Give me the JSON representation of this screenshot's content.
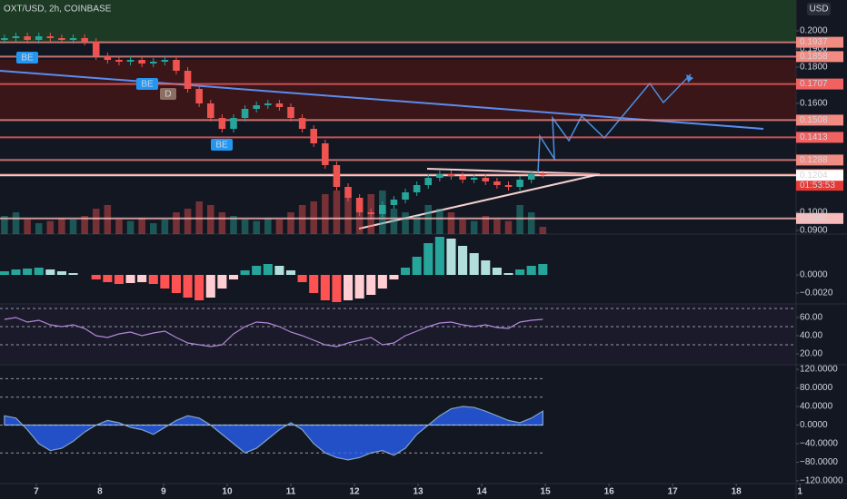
{
  "chart_data": [
    {
      "type": "candlestick",
      "title": "OXT/USD, 2h, COINBASE",
      "currency": "USD",
      "countdown": "01:53:53",
      "annotations": [
        "BE",
        "BE",
        "D",
        "BE"
      ],
      "xlim": [
        6.43,
        18.94
      ],
      "xticks": [
        7,
        8,
        9,
        10,
        11,
        12,
        13,
        14,
        15,
        16,
        17,
        18,
        {
          "value": 19,
          "label": "1"
        }
      ],
      "ylim": [
        0.088,
        0.217
      ],
      "yticks": [
        {
          "value": 0.2,
          "label": "0.2000"
        },
        {
          "value": 0.19,
          "label": "0.1900"
        },
        {
          "value": 0.18,
          "label": "0.1800"
        },
        {
          "value": 0.16,
          "label": "0.1600"
        },
        {
          "value": 0.1,
          "label": "0.1000"
        },
        {
          "value": 0.09,
          "label": "0.0900"
        }
      ],
      "levels": [
        {
          "value": 0.1937,
          "color": "#f28b82"
        },
        {
          "value": 0.1858,
          "color": "#f28b82"
        },
        {
          "value": 0.1707,
          "color": "#f06262"
        },
        {
          "value": 0.1508,
          "color": "#f28b82"
        },
        {
          "value": 0.1413,
          "color": "#f06262"
        },
        {
          "value": 0.1288,
          "color": "#f28b82"
        },
        {
          "value": 0.1209,
          "color": "#e53935"
        },
        {
          "value": 0.1204,
          "color": "#ffffff"
        },
        {
          "value": 0.0966,
          "color": "#f8bbbb"
        }
      ],
      "up_color": "#26a69a",
      "down_color": "#ef5350",
      "x": [
        6.5,
        6.68,
        6.86,
        7.04,
        7.22,
        7.4,
        7.58,
        7.76,
        7.94,
        8.12,
        8.3,
        8.48,
        8.66,
        8.84,
        9.02,
        9.2,
        9.38,
        9.56,
        9.74,
        9.92,
        10.1,
        10.28,
        10.46,
        10.64,
        10.82,
        11.0,
        11.18,
        11.36,
        11.54,
        11.72,
        11.9,
        12.08,
        12.26,
        12.44,
        12.62,
        12.8,
        12.98,
        13.16,
        13.34,
        13.52,
        13.7,
        13.88,
        14.06,
        14.24,
        14.42,
        14.6,
        14.78,
        14.96
      ],
      "open": [
        0.195,
        0.196,
        0.197,
        0.195,
        0.197,
        0.196,
        0.195,
        0.196,
        0.194,
        0.186,
        0.184,
        0.183,
        0.184,
        0.182,
        0.183,
        0.184,
        0.178,
        0.168,
        0.16,
        0.152,
        0.146,
        0.152,
        0.157,
        0.159,
        0.16,
        0.158,
        0.152,
        0.146,
        0.138,
        0.126,
        0.114,
        0.108,
        0.1,
        0.099,
        0.104,
        0.107,
        0.111,
        0.115,
        0.119,
        0.121,
        0.12,
        0.118,
        0.119,
        0.117,
        0.115,
        0.114,
        0.118,
        0.121
      ],
      "high": [
        0.198,
        0.199,
        0.199,
        0.199,
        0.199,
        0.198,
        0.198,
        0.198,
        0.196,
        0.188,
        0.186,
        0.186,
        0.186,
        0.185,
        0.186,
        0.186,
        0.18,
        0.17,
        0.162,
        0.154,
        0.154,
        0.159,
        0.161,
        0.162,
        0.162,
        0.16,
        0.154,
        0.148,
        0.14,
        0.128,
        0.116,
        0.11,
        0.102,
        0.106,
        0.109,
        0.113,
        0.117,
        0.121,
        0.123,
        0.123,
        0.122,
        0.121,
        0.121,
        0.119,
        0.117,
        0.12,
        0.123,
        0.123
      ],
      "low": [
        0.193,
        0.194,
        0.193,
        0.193,
        0.194,
        0.193,
        0.193,
        0.192,
        0.184,
        0.182,
        0.181,
        0.181,
        0.18,
        0.18,
        0.181,
        0.176,
        0.166,
        0.158,
        0.15,
        0.144,
        0.144,
        0.15,
        0.155,
        0.157,
        0.156,
        0.15,
        0.144,
        0.136,
        0.124,
        0.112,
        0.106,
        0.098,
        0.097,
        0.097,
        0.102,
        0.105,
        0.109,
        0.113,
        0.117,
        0.118,
        0.116,
        0.116,
        0.115,
        0.113,
        0.112,
        0.112,
        0.116,
        0.1189
      ],
      "close": [
        0.196,
        0.197,
        0.195,
        0.197,
        0.196,
        0.195,
        0.196,
        0.194,
        0.186,
        0.184,
        0.183,
        0.184,
        0.182,
        0.183,
        0.184,
        0.178,
        0.168,
        0.16,
        0.152,
        0.146,
        0.152,
        0.157,
        0.159,
        0.16,
        0.158,
        0.152,
        0.146,
        0.138,
        0.126,
        0.114,
        0.108,
        0.1,
        0.099,
        0.104,
        0.107,
        0.111,
        0.115,
        0.119,
        0.121,
        0.12,
        0.118,
        0.119,
        0.117,
        0.115,
        0.114,
        0.118,
        0.121,
        0.1209
      ],
      "volume_ylim": [
        0,
        100
      ],
      "volume": [
        25,
        30,
        20,
        15,
        18,
        22,
        20,
        25,
        35,
        40,
        20,
        18,
        22,
        15,
        20,
        30,
        35,
        45,
        40,
        30,
        25,
        20,
        18,
        22,
        20,
        30,
        40,
        45,
        55,
        60,
        50,
        45,
        55,
        60,
        35,
        30,
        25,
        40,
        35,
        30,
        20,
        18,
        25,
        20,
        18,
        40,
        30,
        10
      ]
    },
    {
      "type": "bar",
      "ylim": [
        -0.0032,
        0.0045
      ],
      "yticks": [
        {
          "value": 0,
          "label": "0.0000"
        },
        {
          "value": -0.002,
          "label": "−0.0020"
        }
      ],
      "values": [
        0.0004,
        0.0006,
        0.0007,
        0.0008,
        0.0006,
        0.0004,
        0.0002,
        0,
        -0.0005,
        -0.0008,
        -0.001,
        -0.0009,
        -0.0008,
        -0.001,
        -0.0015,
        -0.002,
        -0.0025,
        -0.0028,
        -0.0025,
        -0.0015,
        -0.0005,
        0.0005,
        0.001,
        0.0012,
        0.001,
        0.0005,
        -0.0008,
        -0.002,
        -0.0028,
        -0.003,
        -0.0028,
        -0.0026,
        -0.0022,
        -0.0015,
        -0.0005,
        0.0008,
        0.002,
        0.0035,
        0.0042,
        0.004,
        0.0032,
        0.0024,
        0.0016,
        0.0008,
        0.0002,
        0.0006,
        0.001,
        0.0012
      ]
    },
    {
      "type": "line",
      "ylim": [
        8,
        75
      ],
      "color": "#b388d8",
      "yticks": [
        {
          "value": 60,
          "label": "60.00"
        },
        {
          "value": 40,
          "label": "40.00"
        },
        {
          "value": 20,
          "label": "20.00"
        }
      ],
      "hlines": [
        70,
        50,
        30
      ],
      "values": [
        58,
        60,
        55,
        57,
        52,
        50,
        52,
        48,
        40,
        38,
        42,
        44,
        40,
        43,
        45,
        38,
        32,
        30,
        28,
        30,
        42,
        50,
        55,
        54,
        50,
        44,
        40,
        35,
        30,
        28,
        32,
        35,
        38,
        30,
        32,
        40,
        45,
        50,
        54,
        55,
        52,
        50,
        52,
        49,
        48,
        55,
        57,
        58
      ]
    },
    {
      "type": "area",
      "ylim": [
        -126,
        128
      ],
      "color": "#2962ff",
      "yticks": [
        {
          "value": 120,
          "label": "120.0000"
        },
        {
          "value": 80,
          "label": "80.0000"
        },
        {
          "value": 40,
          "label": "40.0000"
        },
        {
          "value": 0,
          "label": "0.0000"
        },
        {
          "value": -40,
          "label": "−40.0000"
        },
        {
          "value": -80,
          "label": "−80.0000"
        },
        {
          "value": -120,
          "label": "−120.0000"
        }
      ],
      "hlines": [
        100,
        60,
        0,
        -60
      ],
      "values": [
        20,
        15,
        -10,
        -40,
        -55,
        -50,
        -35,
        -15,
        0,
        10,
        5,
        -5,
        -10,
        -20,
        -5,
        10,
        20,
        15,
        0,
        -20,
        -40,
        -60,
        -50,
        -30,
        -10,
        5,
        -10,
        -40,
        -60,
        -70,
        -75,
        -70,
        -60,
        -55,
        -65,
        -50,
        -20,
        0,
        20,
        35,
        40,
        38,
        30,
        20,
        10,
        5,
        15,
        30
      ]
    }
  ]
}
